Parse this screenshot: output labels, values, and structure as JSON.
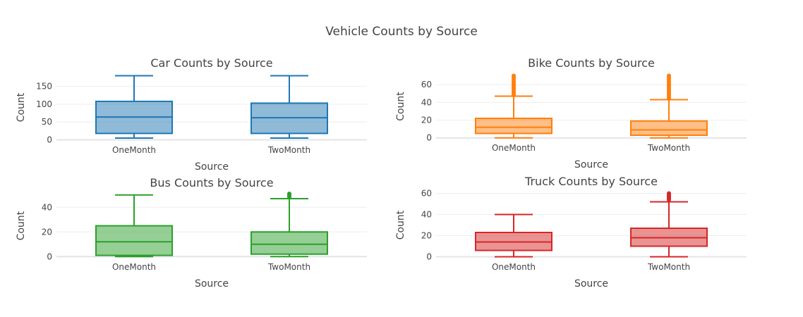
{
  "title": "Vehicle Counts by Source",
  "chart_data": [
    {
      "type": "box",
      "title": "Car Counts by Source",
      "xlabel": "Source",
      "ylabel": "Count",
      "color": "#1f77b4",
      "categories": [
        "OneMonth",
        "TwoMonth"
      ],
      "ylim": [
        -3,
        185
      ],
      "yticks": [
        0,
        50,
        100,
        150
      ],
      "boxes": [
        {
          "name": "OneMonth",
          "min": 5,
          "q1": 18,
          "median": 64,
          "q3": 108,
          "max": 180,
          "outliers": []
        },
        {
          "name": "TwoMonth",
          "min": 5,
          "q1": 18,
          "median": 62,
          "q3": 103,
          "max": 180,
          "outliers": []
        }
      ]
    },
    {
      "type": "box",
      "title": "Bike Counts by Source",
      "xlabel": "Source",
      "ylabel": "Count",
      "color": "#ff7f0e",
      "categories": [
        "OneMonth",
        "TwoMonth"
      ],
      "ylim": [
        -1,
        72
      ],
      "yticks": [
        0,
        20,
        40,
        60
      ],
      "boxes": [
        {
          "name": "OneMonth",
          "min": 0,
          "q1": 5,
          "median": 12,
          "q3": 22,
          "max": 47,
          "outliers": [
            48,
            50,
            52,
            54,
            56,
            58,
            60,
            62,
            64,
            66,
            68,
            70
          ]
        },
        {
          "name": "TwoMonth",
          "min": 0,
          "q1": 3,
          "median": 9,
          "q3": 19,
          "max": 43,
          "outliers": [
            44,
            46,
            48,
            50,
            52,
            54,
            56,
            58,
            60,
            62,
            64,
            66,
            68,
            70
          ]
        }
      ]
    },
    {
      "type": "box",
      "title": "Bus Counts by Source",
      "xlabel": "Source",
      "ylabel": "Count",
      "color": "#2ca02c",
      "categories": [
        "OneMonth",
        "TwoMonth"
      ],
      "ylim": [
        -1,
        51
      ],
      "yticks": [
        0,
        20,
        40
      ],
      "boxes": [
        {
          "name": "OneMonth",
          "min": 0,
          "q1": 1,
          "median": 12,
          "q3": 25,
          "max": 50,
          "outliers": []
        },
        {
          "name": "TwoMonth",
          "min": 0,
          "q1": 2,
          "median": 10,
          "q3": 20,
          "max": 47,
          "outliers": [
            48,
            49,
            50,
            51
          ]
        }
      ]
    },
    {
      "type": "box",
      "title": "Truck Counts by Source",
      "xlabel": "Source",
      "ylabel": "Count",
      "color": "#d62728",
      "categories": [
        "OneMonth",
        "TwoMonth"
      ],
      "ylim": [
        -1,
        61
      ],
      "yticks": [
        0,
        20,
        40,
        60
      ],
      "boxes": [
        {
          "name": "OneMonth",
          "min": 0,
          "q1": 6,
          "median": 14,
          "q3": 23,
          "max": 40,
          "outliers": []
        },
        {
          "name": "TwoMonth",
          "min": 0,
          "q1": 10,
          "median": 18,
          "q3": 27,
          "max": 52,
          "outliers": [
            54,
            55,
            56,
            57,
            58,
            59,
            60
          ]
        }
      ]
    }
  ]
}
